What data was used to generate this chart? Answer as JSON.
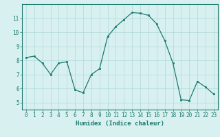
{
  "x": [
    0,
    1,
    2,
    3,
    4,
    5,
    6,
    7,
    8,
    9,
    10,
    11,
    12,
    13,
    14,
    15,
    16,
    17,
    18,
    19,
    20,
    21,
    22,
    23
  ],
  "y": [
    8.2,
    8.3,
    7.8,
    7.0,
    7.8,
    7.9,
    5.9,
    5.7,
    7.0,
    7.4,
    9.7,
    10.4,
    10.9,
    11.4,
    11.35,
    11.2,
    10.6,
    9.4,
    7.8,
    5.2,
    5.15,
    6.5,
    6.1,
    5.6
  ],
  "line_color": "#1a7a6e",
  "marker": "s",
  "marker_size": 2.0,
  "bg_color": "#d8f0f0",
  "grid_color": "#b0d8d8",
  "xlabel": "Humidex (Indice chaleur)",
  "ylim": [
    4.5,
    12.0
  ],
  "xlim": [
    -0.5,
    23.5
  ],
  "yticks": [
    5,
    6,
    7,
    8,
    9,
    10,
    11
  ],
  "xticks": [
    0,
    1,
    2,
    3,
    4,
    5,
    6,
    7,
    8,
    9,
    10,
    11,
    12,
    13,
    14,
    15,
    16,
    17,
    18,
    19,
    20,
    21,
    22,
    23
  ],
  "tick_fontsize": 5.5,
  "xlabel_fontsize": 6.5
}
